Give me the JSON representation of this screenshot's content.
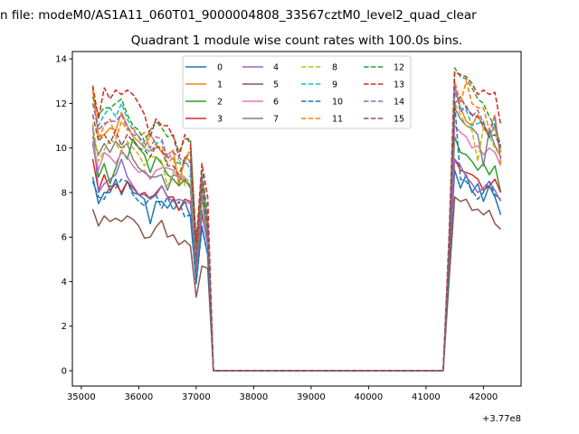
{
  "chart_data": {
    "type": "line",
    "suptitle": "n file: modeM0/AS1A11_060T01_9000004808_33567cztM0_level2_quad_clear",
    "title": "Quadrant 1 module wise count rates with 100.0s bins.",
    "xlabel": "",
    "ylabel": "",
    "x_offset_text": "+3.77e8",
    "x_start": 35200,
    "x_step": 100,
    "gap": {
      "from": 37300,
      "to": 41300,
      "value": 0
    },
    "xlim": [
      34845,
      42655
    ],
    "ylim": [
      -0.69,
      14.33
    ],
    "xticks": [
      35000,
      36000,
      37000,
      38000,
      39000,
      40000,
      41000,
      42000
    ],
    "yticks": [
      0,
      2,
      4,
      6,
      8,
      10,
      12,
      14
    ],
    "grid": false,
    "legend": {
      "placement": "top-center",
      "columns": 4
    },
    "series": [
      {
        "name": "0",
        "color": "#1f77b4",
        "style": "solid",
        "values_before_gap": [
          8.7,
          7.5,
          8.0,
          8.0,
          8.6,
          7.9,
          8.5,
          8.0,
          7.9,
          7.7,
          6.6,
          7.6,
          7.6,
          7.3,
          7.7,
          7.2,
          7.6,
          6.9,
          4.0,
          6.5,
          5.2
        ],
        "values_after_gap": [
          4.5,
          9.0,
          8.2,
          8.8,
          8.0,
          8.4,
          7.6,
          8.3,
          7.8,
          7.0
        ]
      },
      {
        "name": "1",
        "color": "#ff7f0e",
        "style": "solid",
        "values_before_gap": [
          12.7,
          10.5,
          10.6,
          10.9,
          10.8,
          11.6,
          11.0,
          10.5,
          10.3,
          10.0,
          10.6,
          10.2,
          9.8,
          9.7,
          9.9,
          8.3,
          9.6,
          9.4,
          5.5,
          8.6,
          6.5
        ],
        "values_after_gap": [
          5.0,
          12.8,
          11.8,
          11.2,
          11.0,
          11.5,
          10.9,
          10.6,
          10.9,
          9.8
        ]
      },
      {
        "name": "2",
        "color": "#2ca02c",
        "style": "solid",
        "values_before_gap": [
          10.2,
          8.7,
          9.3,
          8.4,
          9.1,
          9.9,
          9.5,
          10.4,
          10.0,
          9.7,
          8.9,
          9.6,
          9.3,
          8.8,
          8.6,
          8.3,
          8.6,
          8.2,
          4.5,
          7.8,
          6.0
        ],
        "values_after_gap": [
          4.8,
          10.5,
          9.8,
          9.7,
          9.4,
          9.0,
          9.3,
          8.8,
          9.2,
          8.0
        ]
      },
      {
        "name": "3",
        "color": "#d62728",
        "style": "solid",
        "values_before_gap": [
          9.5,
          8.1,
          8.8,
          8.1,
          8.4,
          8.0,
          8.5,
          8.2,
          7.9,
          8.0,
          7.7,
          7.9,
          8.3,
          7.8,
          7.8,
          7.2,
          7.7,
          7.6,
          4.5,
          7.0,
          5.8
        ],
        "values_after_gap": [
          4.5,
          9.5,
          9.0,
          8.9,
          8.8,
          8.6,
          8.1,
          8.3,
          8.6,
          8.0
        ]
      },
      {
        "name": "4",
        "color": "#9467bd",
        "style": "solid",
        "values_before_gap": [
          11.0,
          8.0,
          8.4,
          8.6,
          8.8,
          9.5,
          8.7,
          8.3,
          7.9,
          7.9,
          7.7,
          8.0,
          8.3,
          7.8,
          7.6,
          7.7,
          7.6,
          7.5,
          4.4,
          7.2,
          5.6
        ],
        "values_after_gap": [
          4.6,
          9.5,
          9.2,
          8.7,
          8.4,
          8.0,
          8.2,
          8.5,
          8.1,
          7.6
        ]
      },
      {
        "name": "5",
        "color": "#8c564b",
        "style": "solid",
        "values_before_gap": [
          7.25,
          6.5,
          6.95,
          6.7,
          6.85,
          6.7,
          6.95,
          6.8,
          6.5,
          5.95,
          6.0,
          6.45,
          6.75,
          6.0,
          6.1,
          5.65,
          5.85,
          5.6,
          3.3,
          4.7,
          4.6
        ],
        "values_after_gap": [
          4.0,
          7.8,
          7.6,
          7.7,
          7.2,
          7.25,
          7.0,
          7.2,
          6.6,
          6.35
        ]
      },
      {
        "name": "6",
        "color": "#e377c2",
        "style": "solid",
        "values_before_gap": [
          10.3,
          9.0,
          9.8,
          9.6,
          9.3,
          9.8,
          9.6,
          9.2,
          8.9,
          9.0,
          8.6,
          9.0,
          9.1,
          9.1,
          9.0,
          8.7,
          8.7,
          8.3,
          4.8,
          8.0,
          6.2
        ],
        "values_after_gap": [
          5.0,
          11.0,
          10.7,
          10.5,
          10.0,
          10.1,
          9.7,
          10.0,
          9.8,
          9.2
        ]
      },
      {
        "name": "7",
        "color": "#7f7f7f",
        "style": "solid",
        "values_before_gap": [
          10.5,
          9.7,
          10.2,
          9.8,
          10.3,
          10.0,
          10.2,
          9.5,
          9.1,
          8.9,
          8.7,
          8.7,
          8.8,
          8.1,
          8.8,
          8.7,
          8.5,
          8.3,
          4.6,
          8.0,
          6.2
        ],
        "values_after_gap": [
          5.0,
          11.8,
          11.3,
          11.0,
          10.9,
          10.6,
          9.2,
          10.8,
          10.1,
          9.6
        ]
      },
      {
        "name": "8",
        "color": "#bcbd22",
        "style": "dashed",
        "values_before_gap": [
          11.1,
          9.4,
          9.9,
          10.4,
          10.2,
          9.8,
          10.3,
          10.0,
          9.7,
          9.2,
          9.6,
          9.6,
          9.4,
          8.3,
          8.9,
          9.6,
          8.3,
          8.8,
          4.8,
          8.2,
          6.5
        ],
        "values_after_gap": [
          5.0,
          12.0,
          11.5,
          11.0,
          10.8,
          9.4,
          10.9,
          10.5,
          10.0,
          9.6
        ]
      },
      {
        "name": "9",
        "color": "#17becf",
        "style": "dashed",
        "values_before_gap": [
          12.0,
          11.0,
          11.5,
          11.8,
          11.4,
          12.0,
          11.3,
          10.8,
          10.5,
          10.0,
          9.8,
          10.2,
          10.3,
          9.6,
          9.5,
          9.3,
          9.5,
          9.0,
          5.0,
          8.6,
          6.5
        ],
        "values_after_gap": [
          5.0,
          12.5,
          11.8,
          11.7,
          11.0,
          11.1,
          11.2,
          10.4,
          11.1,
          10.0
        ]
      },
      {
        "name": "10",
        "color": "#1f77b4",
        "style": "dashed",
        "values_before_gap": [
          8.5,
          7.8,
          7.7,
          8.3,
          8.2,
          8.6,
          8.5,
          7.9,
          7.6,
          7.4,
          7.8,
          7.9,
          7.3,
          7.8,
          7.2,
          7.6,
          6.9,
          7.0,
          3.9,
          6.4,
          5.2
        ],
        "values_after_gap": [
          4.5,
          12.0,
          8.6,
          8.5,
          8.1,
          7.7,
          8.0,
          8.5,
          7.9,
          7.7
        ]
      },
      {
        "name": "11",
        "color": "#ff7f0e",
        "style": "dashed",
        "values_before_gap": [
          12.6,
          10.4,
          11.0,
          11.3,
          10.4,
          11.2,
          10.8,
          10.9,
          10.5,
          10.7,
          9.9,
          10.0,
          10.1,
          9.3,
          9.6,
          8.5,
          9.4,
          10.0,
          5.0,
          8.6,
          6.5
        ],
        "values_after_gap": [
          5.5,
          13.0,
          12.0,
          13.0,
          12.0,
          11.8,
          11.8,
          10.8,
          11.5,
          9.3
        ]
      },
      {
        "name": "12",
        "color": "#2ca02c",
        "style": "dashed",
        "values_before_gap": [
          12.3,
          11.5,
          11.8,
          11.8,
          12.0,
          12.2,
          11.5,
          11.0,
          10.8,
          10.3,
          10.8,
          11.2,
          10.9,
          10.5,
          10.6,
          9.8,
          10.4,
          10.4,
          5.6,
          9.0,
          7.0
        ],
        "values_after_gap": [
          5.8,
          13.6,
          13.2,
          13.1,
          12.7,
          12.2,
          12.0,
          11.4,
          11.0,
          10.1
        ]
      },
      {
        "name": "13",
        "color": "#d62728",
        "style": "dashed",
        "values_before_gap": [
          12.8,
          11.3,
          12.7,
          12.2,
          12.6,
          12.4,
          12.6,
          12.4,
          12.0,
          11.5,
          10.5,
          11.3,
          11.0,
          11.0,
          10.5,
          9.6,
          10.6,
          10.2,
          5.8,
          9.3,
          7.8
        ],
        "values_after_gap": [
          6.0,
          13.4,
          13.3,
          13.2,
          12.9,
          12.4,
          12.6,
          12.4,
          12.5,
          11.0
        ]
      },
      {
        "name": "14",
        "color": "#9467bd",
        "style": "dashed",
        "values_before_gap": [
          12.0,
          10.8,
          11.1,
          11.2,
          11.2,
          11.5,
          10.9,
          10.6,
          10.5,
          10.2,
          10.0,
          10.5,
          10.4,
          9.5,
          9.8,
          9.6,
          9.3,
          9.4,
          4.8,
          8.7,
          6.7
        ],
        "values_after_gap": [
          5.5,
          12.8,
          11.6,
          11.9,
          11.4,
          11.7,
          11.1,
          10.6,
          11.4,
          9.5
        ]
      },
      {
        "name": "15",
        "color": "#8c564b",
        "style": "dashed",
        "values_before_gap": [
          11.5,
          10.3,
          10.6,
          10.2,
          10.8,
          10.1,
          10.6,
          10.3,
          10.0,
          9.9,
          9.6,
          10.1,
          9.9,
          9.2,
          9.2,
          8.8,
          9.5,
          9.8,
          4.9,
          8.4,
          6.4
        ],
        "values_after_gap": [
          5.2,
          12.0,
          12.3,
          11.8,
          11.5,
          11.4,
          11.0,
          10.5,
          10.6,
          10.0
        ]
      }
    ]
  }
}
